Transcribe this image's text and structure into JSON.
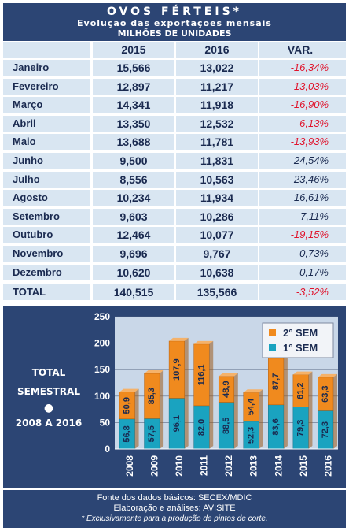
{
  "header": {
    "title": "OVOS FÉRTEIS*",
    "subtitle": "Evolução das exportações mensais",
    "unit": "MILHÕES DE UNIDADES"
  },
  "table": {
    "columns": [
      "",
      "2015",
      "2016",
      "VAR."
    ],
    "rows": [
      {
        "month": "Janeiro",
        "y2015": "15,566",
        "y2016": "13,022",
        "var": "-16,34%",
        "neg": true
      },
      {
        "month": "Fevereiro",
        "y2015": "12,897",
        "y2016": "11,217",
        "var": "-13,03%",
        "neg": true
      },
      {
        "month": "Março",
        "y2015": "14,341",
        "y2016": "11,918",
        "var": "-16,90%",
        "neg": true
      },
      {
        "month": "Abril",
        "y2015": "13,350",
        "y2016": "12,532",
        "var": "-6,13%",
        "neg": true
      },
      {
        "month": "Maio",
        "y2015": "13,688",
        "y2016": "11,781",
        "var": "-13,93%",
        "neg": true
      },
      {
        "month": "Junho",
        "y2015": "9,500",
        "y2016": "11,831",
        "var": "24,54%",
        "neg": false
      },
      {
        "month": "Julho",
        "y2015": "8,556",
        "y2016": "10,563",
        "var": "23,46%",
        "neg": false
      },
      {
        "month": "Agosto",
        "y2015": "10,234",
        "y2016": "11,934",
        "var": "16,61%",
        "neg": false
      },
      {
        "month": "Setembro",
        "y2015": "9,603",
        "y2016": "10,286",
        "var": "7,11%",
        "neg": false
      },
      {
        "month": "Outubro",
        "y2015": "12,464",
        "y2016": "10,077",
        "var": "-19,15%",
        "neg": true
      },
      {
        "month": "Novembro",
        "y2015": "9,696",
        "y2016": "9,767",
        "var": "0,73%",
        "neg": false
      },
      {
        "month": "Dezembro",
        "y2015": "10,620",
        "y2016": "10,638",
        "var": "0,17%",
        "neg": false
      }
    ],
    "total": {
      "label": "TOTAL",
      "y2015": "140,515",
      "y2016": "135,566",
      "var": "-3,52%"
    }
  },
  "side_label": {
    "line1": "TOTAL",
    "line2": "SEMESTRAL",
    "bullet": "●",
    "line3": "2008 A 2016"
  },
  "chart_data": {
    "type": "bar",
    "stacked": true,
    "categories": [
      "2008",
      "2009",
      "2010",
      "2011",
      "2012",
      "2013",
      "2014",
      "2015",
      "2016"
    ],
    "series": [
      {
        "name": "1° SEM",
        "values": [
          56.8,
          57.5,
          96.1,
          82.0,
          88.5,
          52.3,
          83.6,
          79.3,
          72.3
        ],
        "labels": [
          "56,8",
          "57,5",
          "96,1",
          "82,0",
          "88,5",
          "52,3",
          "83,6",
          "79,3",
          "72,3"
        ],
        "color": "#1aa3c0"
      },
      {
        "name": "2° SEM",
        "values": [
          50.9,
          85.3,
          107.9,
          116.1,
          48.9,
          54.4,
          87.7,
          61.2,
          63.3
        ],
        "labels": [
          "50,9",
          "85,3",
          "107,9",
          "116,1",
          "48,9",
          "54,4",
          "87,7",
          "61,2",
          "63,3"
        ],
        "color": "#f08a1e"
      }
    ],
    "ylim": [
      0,
      250
    ],
    "yticks": [
      "0",
      "50",
      "100",
      "150",
      "200",
      "250"
    ],
    "grid": true,
    "legend": "top-right"
  },
  "footer": {
    "line1": "Fonte dos dados básicos: SECEX/MDIC",
    "line2": "Elaboração e análises: AVISITE",
    "line3": "* Exclusivamente para a produção de pintos de corte."
  },
  "colors": {
    "navy": "#2c4574",
    "cell": "#d9e6f2",
    "negative": "#e0132c",
    "orange": "#f08a1e",
    "teal": "#1aa3c0"
  }
}
